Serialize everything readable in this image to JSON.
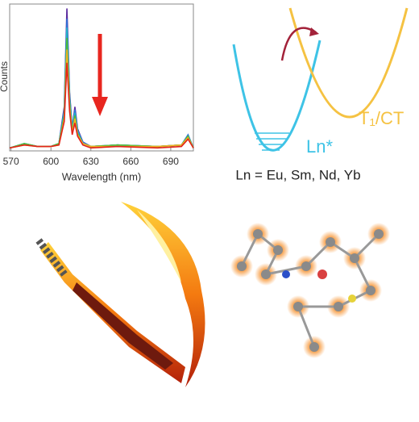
{
  "chart_data": {
    "type": "line",
    "ylabel": "Counts",
    "xlabel": "Wavelength (nm)",
    "x": [
      569,
      580,
      590,
      600,
      606,
      610,
      612,
      614,
      616,
      618,
      620,
      624,
      630,
      650,
      680,
      698,
      703,
      707
    ],
    "xlim": [
      569,
      707
    ],
    "xticks": [
      570,
      600,
      630,
      660,
      690
    ],
    "ylim": [
      0,
      1
    ],
    "series": [
      {
        "color": "#5b2c9e",
        "values": [
          0.02,
          0.05,
          0.03,
          0.03,
          0.05,
          0.3,
          0.97,
          0.4,
          0.15,
          0.3,
          0.15,
          0.06,
          0.03,
          0.04,
          0.03,
          0.04,
          0.1,
          0.02
        ]
      },
      {
        "color": "#2f6fd6",
        "values": [
          0.02,
          0.05,
          0.03,
          0.03,
          0.05,
          0.28,
          0.9,
          0.38,
          0.15,
          0.28,
          0.14,
          0.06,
          0.03,
          0.04,
          0.03,
          0.04,
          0.11,
          0.02
        ]
      },
      {
        "color": "#22b5c9",
        "values": [
          0.02,
          0.05,
          0.03,
          0.03,
          0.05,
          0.26,
          0.84,
          0.36,
          0.14,
          0.26,
          0.13,
          0.05,
          0.03,
          0.04,
          0.03,
          0.04,
          0.1,
          0.02
        ]
      },
      {
        "color": "#4fbf3a",
        "values": [
          0.02,
          0.05,
          0.03,
          0.03,
          0.05,
          0.24,
          0.77,
          0.33,
          0.13,
          0.24,
          0.12,
          0.05,
          0.03,
          0.04,
          0.03,
          0.04,
          0.1,
          0.02
        ]
      },
      {
        "color": "#f0b020",
        "values": [
          0.02,
          0.04,
          0.03,
          0.03,
          0.04,
          0.22,
          0.69,
          0.3,
          0.12,
          0.22,
          0.11,
          0.05,
          0.03,
          0.03,
          0.03,
          0.04,
          0.09,
          0.02
        ]
      },
      {
        "color": "#e2231a",
        "values": [
          0.02,
          0.04,
          0.03,
          0.03,
          0.04,
          0.2,
          0.6,
          0.27,
          0.11,
          0.19,
          0.1,
          0.04,
          0.02,
          0.03,
          0.02,
          0.03,
          0.08,
          0.02
        ]
      }
    ]
  },
  "diagram": {
    "ground_label": "Ln*",
    "excited_label": "T₁/CT",
    "caption": "Ln = Eu, Sm, Nd, Yb"
  }
}
